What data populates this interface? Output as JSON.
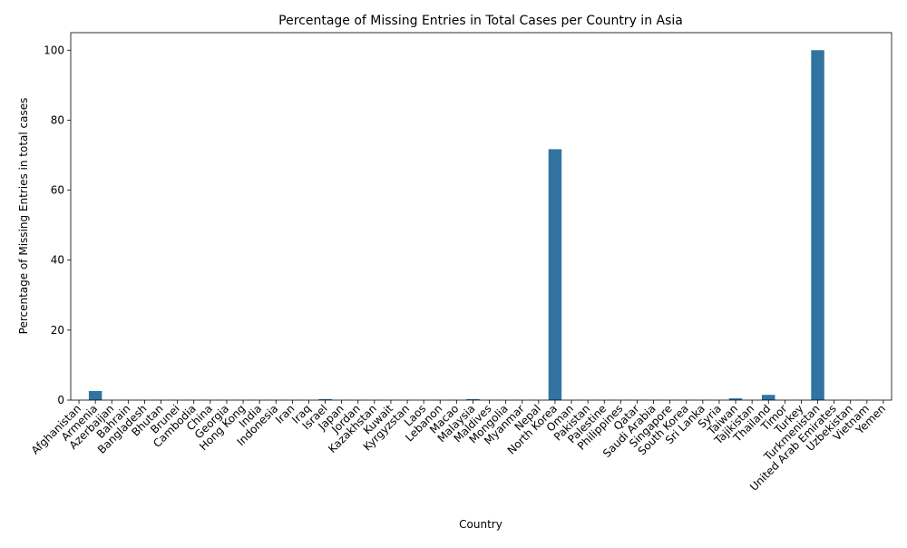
{
  "chart_data": {
    "type": "bar",
    "title": "Percentage of Missing Entries in Total Cases per Country in Asia",
    "xlabel": "Country",
    "ylabel": "Percentage of Missing Entries in total cases",
    "ylim": [
      0,
      105
    ],
    "yticks": [
      0,
      20,
      40,
      60,
      80,
      100
    ],
    "grid": false,
    "legend": "none",
    "bar_color": "#3274a1",
    "categories": [
      "Afghanistan",
      "Armenia",
      "Azerbaijan",
      "Bahrain",
      "Bangladesh",
      "Bhutan",
      "Brunei",
      "Cambodia",
      "China",
      "Georgia",
      "Hong Kong",
      "India",
      "Indonesia",
      "Iran",
      "Iraq",
      "Israel",
      "Japan",
      "Jordan",
      "Kazakhstan",
      "Kuwait",
      "Kyrgyzstan",
      "Laos",
      "Lebanon",
      "Macao",
      "Malaysia",
      "Maldives",
      "Mongolia",
      "Myanmar",
      "Nepal",
      "North Korea",
      "Oman",
      "Pakistan",
      "Palestine",
      "Philippines",
      "Qatar",
      "Saudi Arabia",
      "Singapore",
      "South Korea",
      "Sri Lanka",
      "Syria",
      "Taiwan",
      "Tajikistan",
      "Thailand",
      "Timor",
      "Turkey",
      "Turkmenistan",
      "United Arab Emirates",
      "Uzbekistan",
      "Vietnam",
      "Yemen"
    ],
    "values": [
      0,
      2.6,
      0,
      0,
      0,
      0,
      0,
      0,
      0,
      0,
      0,
      0,
      0,
      0,
      0,
      0.3,
      0,
      0,
      0,
      0,
      0,
      0,
      0,
      0,
      0.3,
      0,
      0,
      0,
      0,
      71.7,
      0,
      0,
      0,
      0,
      0,
      0,
      0,
      0,
      0,
      0,
      0.5,
      0,
      1.5,
      0,
      0,
      100,
      0,
      0,
      0,
      0
    ]
  }
}
